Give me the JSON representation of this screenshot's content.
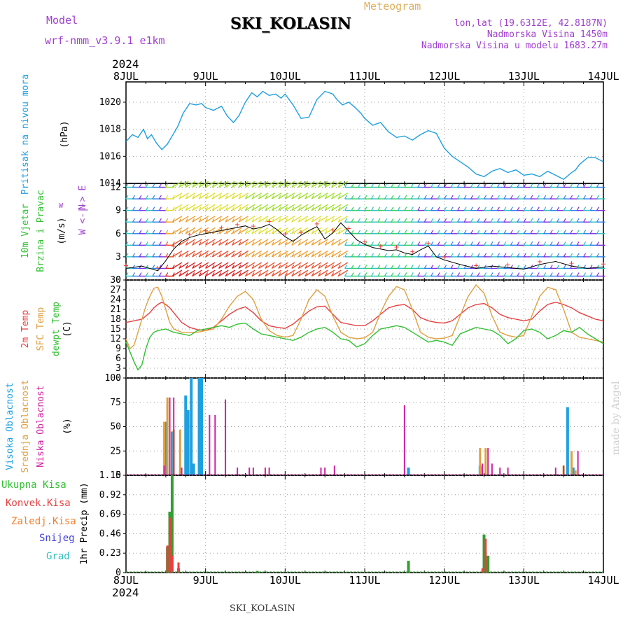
{
  "header": {
    "model_label": "Model",
    "model_name": "wrf-nmm_v3.9.1 e1km",
    "station": "SKI_KOLASIN",
    "meteogram_label": "Meteogram",
    "lonlat": "lon,lat (19.6312E, 42.8187N)",
    "elevation": "Nadmorska Visina 1450m",
    "model_elevation": "Nadmorska Visina u modelu 1683.27m",
    "year_top": "2024",
    "year_bottom": "2024",
    "footer_station": "SKI_KOLASIN",
    "watermark": "made by Angel"
  },
  "colors": {
    "pressure": "#1ea0e0",
    "temp2m": "#e84040",
    "sfc_temp": "#e0a040",
    "dewpoint": "#30c030",
    "cloud_high": "#1ea0e0",
    "cloud_mid": "#e0a040",
    "cloud_low": "#d020a0",
    "precip_total": "#30a030",
    "precip_conv": "#e84040",
    "purple_text": "#a040d0"
  },
  "chart_data": [
    {
      "type": "line",
      "panel": "pressure",
      "ylabels": [
        "Pritisak na nivou mora",
        "(hPa)"
      ],
      "x_ticks": [
        "8JUL",
        "9JUL",
        "10JUL",
        "11JUL",
        "12JUL",
        "13JUL",
        "14JUL"
      ],
      "ylim": [
        1014,
        1021.5
      ],
      "y_ticks": [
        1014,
        1016,
        1018,
        1020
      ],
      "grid": true,
      "series": [
        {
          "x": [
            0,
            0.08,
            0.15,
            0.22,
            0.27,
            0.32,
            0.38,
            0.45,
            0.52,
            0.58,
            0.65,
            0.72,
            0.8,
            0.88,
            0.95,
            1.0,
            1.1,
            1.2,
            1.27,
            1.35,
            1.42,
            1.5,
            1.58,
            1.65,
            1.72,
            1.8,
            1.88,
            1.95,
            2.0,
            2.1,
            2.2,
            2.3,
            2.4,
            2.5,
            2.6,
            2.65,
            2.72,
            2.8,
            2.88,
            2.95,
            3.0,
            3.1,
            3.2,
            3.3,
            3.4,
            3.5,
            3.6,
            3.7,
            3.8,
            3.9,
            4.0,
            4.1,
            4.2,
            4.3,
            4.4,
            4.5,
            4.6,
            4.7,
            4.8,
            4.9,
            5.0,
            5.1,
            5.2,
            5.3,
            5.4,
            5.5,
            5.6,
            5.65,
            5.7,
            5.8,
            5.9,
            6.0
          ],
          "values": [
            1017.1,
            1017.6,
            1017.4,
            1018.0,
            1017.3,
            1017.6,
            1017.0,
            1016.5,
            1016.9,
            1017.5,
            1018.2,
            1019.2,
            1019.9,
            1019.8,
            1019.9,
            1019.6,
            1019.4,
            1019.7,
            1019.0,
            1018.5,
            1019.0,
            1020.0,
            1020.7,
            1020.4,
            1020.8,
            1020.5,
            1020.6,
            1020.3,
            1020.6,
            1019.8,
            1018.8,
            1018.9,
            1020.2,
            1020.8,
            1020.6,
            1020.2,
            1019.8,
            1020.0,
            1019.6,
            1019.2,
            1018.8,
            1018.3,
            1018.5,
            1017.8,
            1017.4,
            1017.5,
            1017.2,
            1017.6,
            1017.9,
            1017.7,
            1016.6,
            1016.0,
            1015.6,
            1015.2,
            1014.7,
            1014.5,
            1014.9,
            1015.1,
            1014.8,
            1015.0,
            1014.6,
            1014.7,
            1014.5,
            1014.9,
            1014.6,
            1014.3,
            1014.8,
            1015.0,
            1015.4,
            1015.9,
            1015.9,
            1015.6
          ],
          "color_key": "pressure"
        }
      ]
    },
    {
      "type": "line",
      "panel": "wind",
      "ylabels": [
        "10m Vjetar",
        "Brzina i Pravac",
        "(m/s)"
      ],
      "legend_text": [
        "N",
        "W <-|-> E",
        "S"
      ],
      "ylim": [
        0,
        12.5
      ],
      "y_ticks": [
        0,
        3,
        6,
        9,
        12
      ],
      "barb_rows": [
        0.5,
        1.5,
        3,
        4.5,
        6,
        7.5,
        9,
        10.5,
        12
      ],
      "series": [
        {
          "name": "speed",
          "x": [
            0,
            0.2,
            0.4,
            0.5,
            0.6,
            0.7,
            0.8,
            0.9,
            1.0,
            1.1,
            1.2,
            1.3,
            1.4,
            1.5,
            1.6,
            1.7,
            1.8,
            1.9,
            2.0,
            2.1,
            2.2,
            2.3,
            2.4,
            2.5,
            2.6,
            2.7,
            2.8,
            2.9,
            3.0,
            3.1,
            3.2,
            3.3,
            3.4,
            3.5,
            3.6,
            3.7,
            3.8,
            3.9,
            4.0,
            4.2,
            4.4,
            4.6,
            4.8,
            5.0,
            5.2,
            5.4,
            5.6,
            5.8,
            6.0
          ],
          "values": [
            1.5,
            1.8,
            1.2,
            2.5,
            4.0,
            5.0,
            5.5,
            5.8,
            6.0,
            6.2,
            6.4,
            6.6,
            6.8,
            7.0,
            6.6,
            6.8,
            7.2,
            6.5,
            5.6,
            5.0,
            5.8,
            6.4,
            6.9,
            5.3,
            6.1,
            7.4,
            6.3,
            5.2,
            4.6,
            4.2,
            4.0,
            3.8,
            3.9,
            3.5,
            3.3,
            3.9,
            4.4,
            3.0,
            2.6,
            2.0,
            1.5,
            1.8,
            1.6,
            1.4,
            2.0,
            2.4,
            1.8,
            1.5,
            1.7
          ],
          "color_key": "temp2m"
        }
      ]
    },
    {
      "type": "line",
      "panel": "temperature",
      "ylabels": [
        "2m Temp",
        "SFC Temp",
        "dewpt Temp",
        "(C)"
      ],
      "ylim": [
        0,
        30
      ],
      "y_ticks": [
        0,
        3,
        6,
        9,
        12,
        15,
        18,
        21,
        24,
        27,
        30
      ],
      "series": [
        {
          "name": "2m Temp",
          "color_key": "temp2m",
          "x": [
            0,
            0.1,
            0.2,
            0.3,
            0.35,
            0.4,
            0.45,
            0.5,
            0.55,
            0.6,
            0.65,
            0.7,
            0.8,
            0.9,
            1.0,
            1.1,
            1.2,
            1.3,
            1.4,
            1.5,
            1.6,
            1.7,
            1.8,
            1.9,
            2.0,
            2.1,
            2.2,
            2.3,
            2.4,
            2.5,
            2.6,
            2.7,
            2.8,
            2.9,
            3.0,
            3.1,
            3.2,
            3.3,
            3.4,
            3.5,
            3.6,
            3.7,
            3.8,
            3.9,
            4.0,
            4.1,
            4.2,
            4.3,
            4.4,
            4.5,
            4.6,
            4.7,
            4.8,
            4.9,
            5.0,
            5.1,
            5.2,
            5.3,
            5.4,
            5.5,
            5.6,
            5.7,
            5.8,
            5.9,
            6.0
          ],
          "values": [
            17,
            17.5,
            18,
            20,
            21.5,
            22.5,
            23.2,
            22.5,
            21.5,
            20,
            18.5,
            17,
            15.5,
            14.8,
            14.5,
            15.5,
            17.5,
            19.5,
            21,
            21.8,
            20,
            17.5,
            16,
            15.5,
            15.2,
            16.5,
            18.5,
            20.5,
            21.8,
            22,
            19.5,
            17,
            16.5,
            16,
            16,
            17.5,
            19.5,
            21.5,
            22.2,
            22.5,
            21,
            18.5,
            17.5,
            17,
            16.8,
            17.5,
            19.5,
            21.5,
            22.5,
            22.8,
            21.5,
            19.5,
            18.5,
            18,
            17.5,
            18,
            20.5,
            22.5,
            23.2,
            22.5,
            21.5,
            20,
            19,
            18,
            17.5
          ]
        },
        {
          "name": "SFC Temp",
          "color_key": "sfc_temp",
          "x": [
            0,
            0.05,
            0.1,
            0.15,
            0.2,
            0.25,
            0.3,
            0.35,
            0.4,
            0.45,
            0.5,
            0.55,
            0.6,
            0.65,
            0.7,
            0.8,
            0.9,
            1.0,
            1.1,
            1.2,
            1.3,
            1.4,
            1.5,
            1.6,
            1.7,
            1.8,
            1.9,
            2.0,
            2.1,
            2.2,
            2.3,
            2.4,
            2.5,
            2.6,
            2.7,
            2.8,
            2.9,
            3.0,
            3.1,
            3.2,
            3.3,
            3.4,
            3.5,
            3.6,
            3.7,
            3.8,
            3.9,
            4.0,
            4.1,
            4.2,
            4.3,
            4.4,
            4.5,
            4.6,
            4.7,
            4.8,
            4.9,
            5.0,
            5.1,
            5.2,
            5.3,
            5.4,
            5.5,
            5.6,
            5.7,
            5.8,
            5.9,
            6.0
          ],
          "values": [
            12,
            9,
            10,
            14,
            18,
            22,
            25,
            27.5,
            27.8,
            25,
            21,
            17,
            15,
            14.5,
            14,
            14,
            14,
            14.5,
            15,
            18,
            22,
            25,
            26.5,
            24,
            18,
            14.5,
            13,
            12.5,
            13,
            18,
            24,
            27,
            25,
            19,
            14,
            12.5,
            12,
            12.3,
            14,
            20,
            25,
            28,
            27,
            21,
            14,
            12.5,
            12,
            12.2,
            13,
            19,
            25,
            28.5,
            26,
            19,
            14,
            13,
            12.5,
            13,
            19,
            25,
            27.8,
            27,
            21,
            14,
            12.5,
            12,
            11.5,
            11
          ]
        },
        {
          "name": "dewpt Temp",
          "color_key": "dewpoint",
          "x": [
            0,
            0.05,
            0.1,
            0.15,
            0.2,
            0.25,
            0.3,
            0.35,
            0.4,
            0.5,
            0.6,
            0.7,
            0.8,
            0.9,
            1.0,
            1.1,
            1.2,
            1.3,
            1.4,
            1.5,
            1.6,
            1.7,
            1.8,
            1.9,
            2.0,
            2.1,
            2.2,
            2.3,
            2.4,
            2.5,
            2.6,
            2.7,
            2.8,
            2.9,
            3.0,
            3.1,
            3.2,
            3.3,
            3.4,
            3.5,
            3.6,
            3.7,
            3.8,
            3.9,
            4.0,
            4.1,
            4.2,
            4.3,
            4.4,
            4.5,
            4.6,
            4.7,
            4.8,
            4.9,
            5.0,
            5.1,
            5.2,
            5.3,
            5.4,
            5.5,
            5.6,
            5.7,
            5.8,
            5.9,
            6.0
          ],
          "values": [
            11,
            8,
            5,
            2.5,
            4,
            9,
            12.5,
            14,
            14.5,
            15,
            14,
            13.5,
            13,
            14.5,
            15,
            15.5,
            16,
            15.5,
            16.5,
            16.8,
            15,
            13.5,
            13,
            12.5,
            12,
            11.5,
            12.5,
            14,
            15,
            15.5,
            14,
            12,
            11.5,
            9.5,
            10.5,
            13,
            15,
            15.5,
            16,
            15.5,
            14,
            12.5,
            11,
            11.5,
            11,
            10,
            13.5,
            14.5,
            15.5,
            15,
            14.5,
            13,
            10.5,
            12,
            14.5,
            15,
            14,
            12,
            13,
            14.5,
            14,
            15.5,
            13.5,
            12,
            10.5
          ]
        }
      ]
    },
    {
      "type": "bar",
      "panel": "cloud",
      "ylabels": [
        "Visoka Oblacnost",
        "Srednja Oblacnost",
        "Niska Oblacnost",
        "(%)"
      ],
      "ylim": [
        0,
        100
      ],
      "y_ticks": [
        0,
        25,
        50,
        75,
        100
      ],
      "series": [
        {
          "name": "Visoka Oblacnost",
          "color_key": "cloud_high",
          "x": [
            0.5,
            0.58,
            0.75,
            0.78,
            0.82,
            0.85,
            0.92,
            0.95,
            3.55,
            4.45,
            5.55,
            5.62
          ],
          "values": [
            55,
            45,
            82,
            67,
            100,
            12,
            100,
            100,
            8,
            10,
            70,
            8
          ]
        },
        {
          "name": "Srednja Oblacnost",
          "color_key": "cloud_mid",
          "x": [
            0.48,
            0.52,
            0.6,
            0.68,
            4.45,
            4.52,
            5.5,
            5.6,
            5.65
          ],
          "values": [
            55,
            80,
            47,
            47,
            28,
            28,
            10,
            25,
            5
          ]
        },
        {
          "name": "Niska Oblacnost",
          "color_key": "cloud_low",
          "x": [
            0.48,
            0.55,
            0.6,
            0.7,
            1.05,
            1.12,
            1.25,
            1.4,
            1.55,
            1.6,
            1.75,
            1.8,
            2.45,
            2.5,
            2.62,
            3.5,
            4.48,
            4.55,
            4.6,
            4.7,
            4.8,
            5.4,
            5.5,
            5.68
          ],
          "values": [
            10,
            80,
            80,
            8,
            62,
            62,
            78,
            8,
            8,
            8,
            8,
            8,
            8,
            8,
            10,
            72,
            12,
            28,
            12,
            8,
            8,
            8,
            10,
            25
          ]
        }
      ]
    },
    {
      "type": "bar",
      "panel": "precip",
      "ylabels": [
        "Ukupna Kisa",
        "Konvek.Kisa",
        "Zaledj.Kisa",
        "Snijeg",
        "Grad",
        "1hr Precip (mm)"
      ],
      "legend_colors": [
        "precip_total",
        "precip_conv",
        "sfc_temp",
        "#4040e0",
        "#30c0c0"
      ],
      "x_ticks": [
        "8JUL",
        "9JUL",
        "10JUL",
        "11JUL",
        "12JUL",
        "13JUL",
        "14JUL"
      ],
      "ylim": [
        0,
        1.15
      ],
      "y_ticks": [
        0,
        0.23,
        0.46,
        0.69,
        0.92,
        1.15
      ],
      "series": [
        {
          "name": "Ukupna Kisa",
          "color_key": "precip_total",
          "x": [
            0.52,
            0.55,
            0.58,
            0.66,
            1.65,
            3.55,
            4.5,
            4.52,
            4.55
          ],
          "values": [
            0.3,
            0.72,
            1.15,
            0.05,
            0.02,
            0.14,
            0.45,
            0.15,
            0.2
          ]
        },
        {
          "name": "Konvek.Kisa",
          "color_key": "precip_conv",
          "x": [
            0.52,
            0.55,
            0.58,
            0.66,
            4.48,
            4.52
          ],
          "values": [
            0.32,
            0.65,
            0.2,
            0.12,
            0.05,
            0.4
          ]
        }
      ]
    }
  ]
}
